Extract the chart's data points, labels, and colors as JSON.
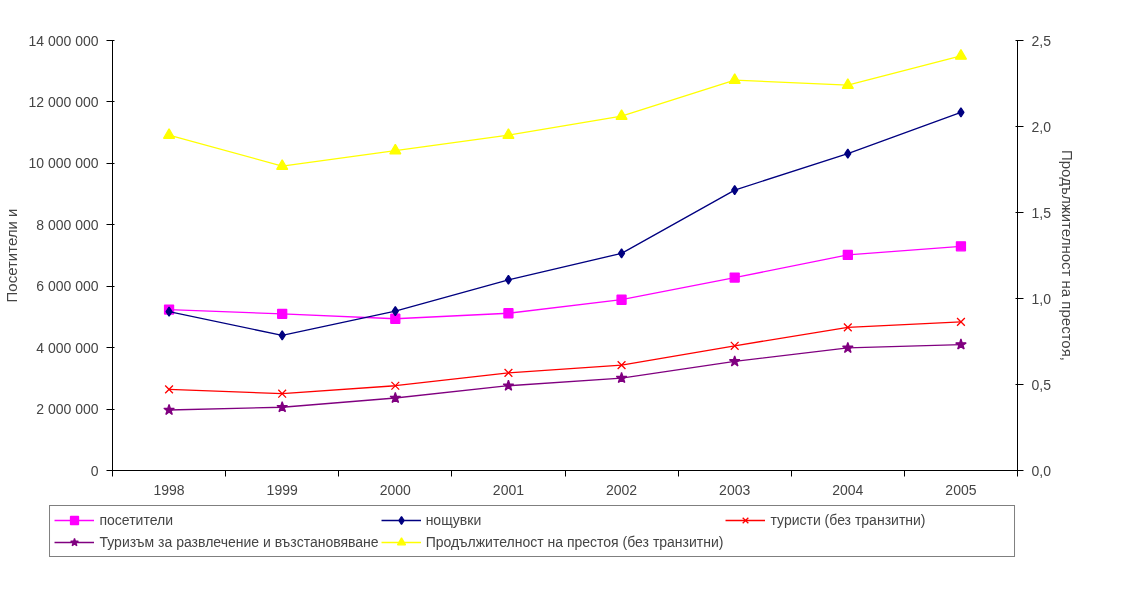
{
  "chart_data": {
    "type": "line",
    "ylabel": "Посетители и",
    "y2label": "Продължителност на престоя,",
    "categories": [
      "1998",
      "1999",
      "2000",
      "2001",
      "2002",
      "2003",
      "2004",
      "2005"
    ],
    "ylim": [
      0,
      14000000
    ],
    "yticks": [
      {
        "value": 0,
        "label": "0"
      },
      {
        "value": 2000000,
        "label": "2 000 000"
      },
      {
        "value": 4000000,
        "label": "4 000 000"
      },
      {
        "value": 6000000,
        "label": "6 000 000"
      },
      {
        "value": 8000000,
        "label": "8 000 000"
      },
      {
        "value": 10000000,
        "label": "10 000 000"
      },
      {
        "value": 12000000,
        "label": "12 000 000"
      },
      {
        "value": 14000000,
        "label": "14 000 000"
      }
    ],
    "y2lim": [
      0,
      2.5
    ],
    "y2ticks": [
      {
        "value": 0,
        "label": "0,0"
      },
      {
        "value": 0.5,
        "label": "0,5"
      },
      {
        "value": 1,
        "label": "1,0"
      },
      {
        "value": 1.5,
        "label": "1,5"
      },
      {
        "value": 2,
        "label": "2,0"
      },
      {
        "value": 2.5,
        "label": "2,5"
      }
    ],
    "legend": "bottom",
    "grid": false,
    "series": [
      {
        "name": "посетители",
        "color": "#ff00ff",
        "marker": "square",
        "values": [
          5240000,
          5100000,
          4940000,
          5120000,
          5560000,
          6280000,
          7020000,
          7300000
        ]
      },
      {
        "name": "нощувки",
        "color": "#000080",
        "marker": "diamond",
        "values": [
          5170000,
          4400000,
          5190000,
          6210000,
          7070000,
          9130000,
          10320000,
          11660000
        ]
      },
      {
        "name": "туристи (без транзитни)",
        "color": "#ff0000",
        "marker": "cross",
        "values": [
          2640000,
          2500000,
          2760000,
          3180000,
          3430000,
          4060000,
          4660000,
          4840000
        ]
      },
      {
        "name": "Туризъм за развлечение и възстановяване",
        "color": "#800080",
        "marker": "star",
        "values": [
          1970000,
          2060000,
          2360000,
          2760000,
          3010000,
          3550000,
          3990000,
          4100000
        ]
      },
      {
        "name": "Продължителност на престоя (без транзитни)",
        "color": "#ffff00",
        "marker": "triangle",
        "axis": "y2",
        "values": [
          1.95,
          1.77,
          1.86,
          1.95,
          2.06,
          2.27,
          2.24,
          2.41
        ]
      }
    ]
  }
}
